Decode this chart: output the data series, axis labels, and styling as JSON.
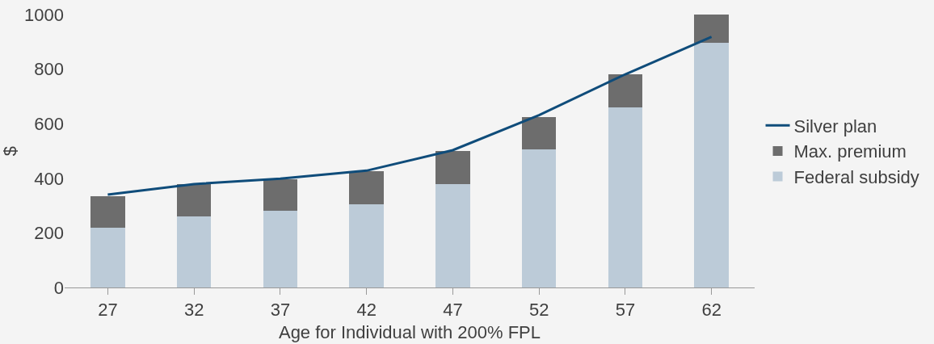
{
  "chart_data": {
    "type": "bar",
    "stacked": true,
    "xlabel": "Age for Individual with 200% FPL",
    "ylabel": "$",
    "categories": [
      "27",
      "32",
      "37",
      "42",
      "47",
      "52",
      "57",
      "62"
    ],
    "series": [
      {
        "name": "Federal subsidy",
        "color": "#bccbd8",
        "values": [
          220,
          260,
          280,
          305,
          380,
          505,
          660,
          895
        ]
      },
      {
        "name": "Max. premium",
        "color": "#6d6d6d",
        "values": [
          115,
          120,
          115,
          120,
          120,
          120,
          120,
          105
        ]
      },
      {
        "name": "Silver plan",
        "type": "line",
        "color": "#0f4c7a",
        "values": [
          340,
          379,
          399,
          428,
          503,
          631,
          781,
          918
        ],
        "marker": "none",
        "line_style": "solid"
      }
    ],
    "ylim": [
      0,
      1000
    ],
    "yticks": [
      0,
      200,
      400,
      600,
      800,
      1000
    ],
    "grid": false,
    "legend": "right"
  }
}
